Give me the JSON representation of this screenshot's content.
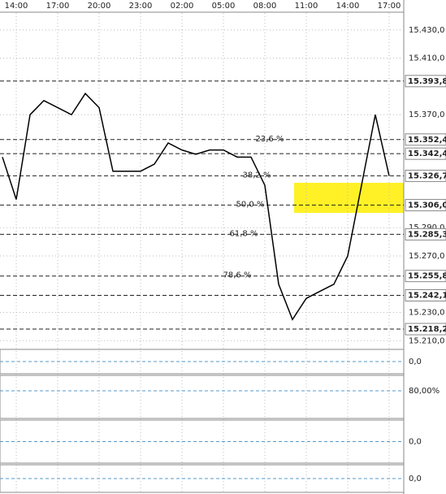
{
  "chart_data": {
    "type": "line",
    "color": "#000000",
    "grid": true,
    "categories": [
      null,
      "14:00",
      null,
      null,
      "17:00",
      null,
      null,
      "20:00",
      null,
      null,
      "23:00",
      null,
      null,
      "02:00",
      null,
      null,
      "05:00",
      null,
      null,
      "08:00",
      null,
      null,
      "11:00",
      null,
      null,
      "14:00",
      null,
      null,
      "17:00"
    ],
    "values": [
      15340,
      15310,
      15370,
      15380,
      15375,
      15370,
      15385,
      15375,
      15330,
      15330,
      15330,
      15335,
      15350,
      15345,
      15342,
      15345,
      15345,
      15340,
      15340,
      15320,
      15250,
      15225,
      15240,
      15245,
      15250,
      15270,
      15320,
      15370,
      15326.7
    ],
    "ylim": [
      15205,
      15442
    ],
    "yticks": [
      {
        "value": 15430,
        "label": "15.430,0"
      },
      {
        "value": 15410,
        "label": "15.410,0"
      },
      {
        "value": 15370,
        "label": "15.370,0"
      },
      {
        "value": 15290,
        "label": "15.290,0"
      },
      {
        "value": 15270,
        "label": "15.270,0"
      },
      {
        "value": 15230,
        "label": "15.230,0"
      },
      {
        "value": 15210,
        "label": "15.210,0"
      }
    ],
    "levels": [
      {
        "value": 15393.8,
        "label": "15.393,8"
      },
      {
        "value": 15352.4,
        "label": "15.352,4",
        "fib": "23,6 %"
      },
      {
        "value": 15342.4,
        "label": "15.342,4"
      },
      {
        "value": 15326.7,
        "label": "15.326,7",
        "fib": "38,2 %"
      },
      {
        "value": 15306.0,
        "label": "15.306,0",
        "fib": "50,0 %"
      },
      {
        "value": 15285.3,
        "label": "15.285,3",
        "fib": "61,8 %"
      },
      {
        "value": 15255.8,
        "label": "15.255,8",
        "fib": "78,6 %"
      },
      {
        "value": 15242.1,
        "label": "15.242,1"
      },
      {
        "value": 15218.2,
        "label": "15.218,2"
      }
    ]
  },
  "indicator_panels": [
    {
      "level_label": "0,0"
    },
    {
      "level_label": "80,00%"
    },
    {
      "level_label": "0,0"
    },
    {
      "level_label": "0,0"
    }
  ]
}
